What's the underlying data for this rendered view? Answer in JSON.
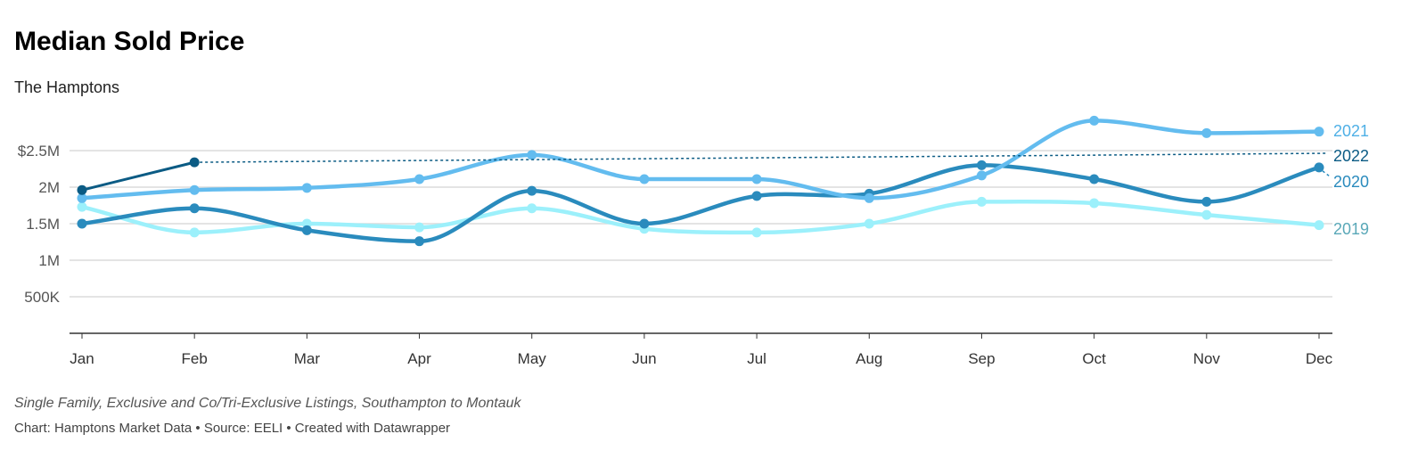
{
  "title": "Median Sold Price",
  "subtitle": "The Hamptons",
  "note": "Single Family, Exclusive and Co/Tri-Exclusive Listings, Southampton to Montauk",
  "credit": "Chart: Hamptons Market Data • Source: EELI • Created with Datawrapper",
  "chart_data": {
    "type": "line",
    "categories": [
      "Jan",
      "Feb",
      "Mar",
      "Apr",
      "May",
      "Jun",
      "Jul",
      "Aug",
      "Sep",
      "Oct",
      "Nov",
      "Dec"
    ],
    "y_ticks": [
      {
        "value": 2.5,
        "label": "$2.5M"
      },
      {
        "value": 2.0,
        "label": "2M"
      },
      {
        "value": 1.5,
        "label": "1.5M"
      },
      {
        "value": 1.0,
        "label": "1M"
      },
      {
        "value": 0.5,
        "label": "500K"
      }
    ],
    "ylim": [
      0,
      2.5
    ],
    "y_unit": "millions USD",
    "grid": true,
    "legend": "direct labels at right end",
    "series": [
      {
        "name": "2019",
        "color": "#9cf0fb",
        "label_color": "#5aa8b8",
        "values": [
          1.73,
          1.38,
          1.5,
          1.45,
          1.71,
          1.43,
          1.38,
          1.5,
          1.8,
          1.78,
          1.62,
          1.48
        ]
      },
      {
        "name": "2020",
        "color": "#2a8bbd",
        "label_color": "#2a8bbd",
        "values": [
          1.5,
          1.71,
          1.41,
          1.26,
          1.95,
          1.5,
          1.88,
          1.91,
          2.3,
          2.11,
          1.8,
          2.27
        ]
      },
      {
        "name": "2021",
        "color": "#63bcef",
        "label_color": "#4fb0e6",
        "values": [
          1.85,
          1.96,
          1.99,
          2.11,
          2.44,
          2.11,
          2.11,
          1.85,
          2.16,
          2.91,
          2.74,
          2.76
        ]
      },
      {
        "name": "2022",
        "color": "#0b5b84",
        "label_color": "#0b5b84",
        "values": [
          1.96,
          2.34,
          null,
          null,
          null,
          null,
          null,
          null,
          null,
          null,
          null,
          null
        ]
      }
    ]
  }
}
